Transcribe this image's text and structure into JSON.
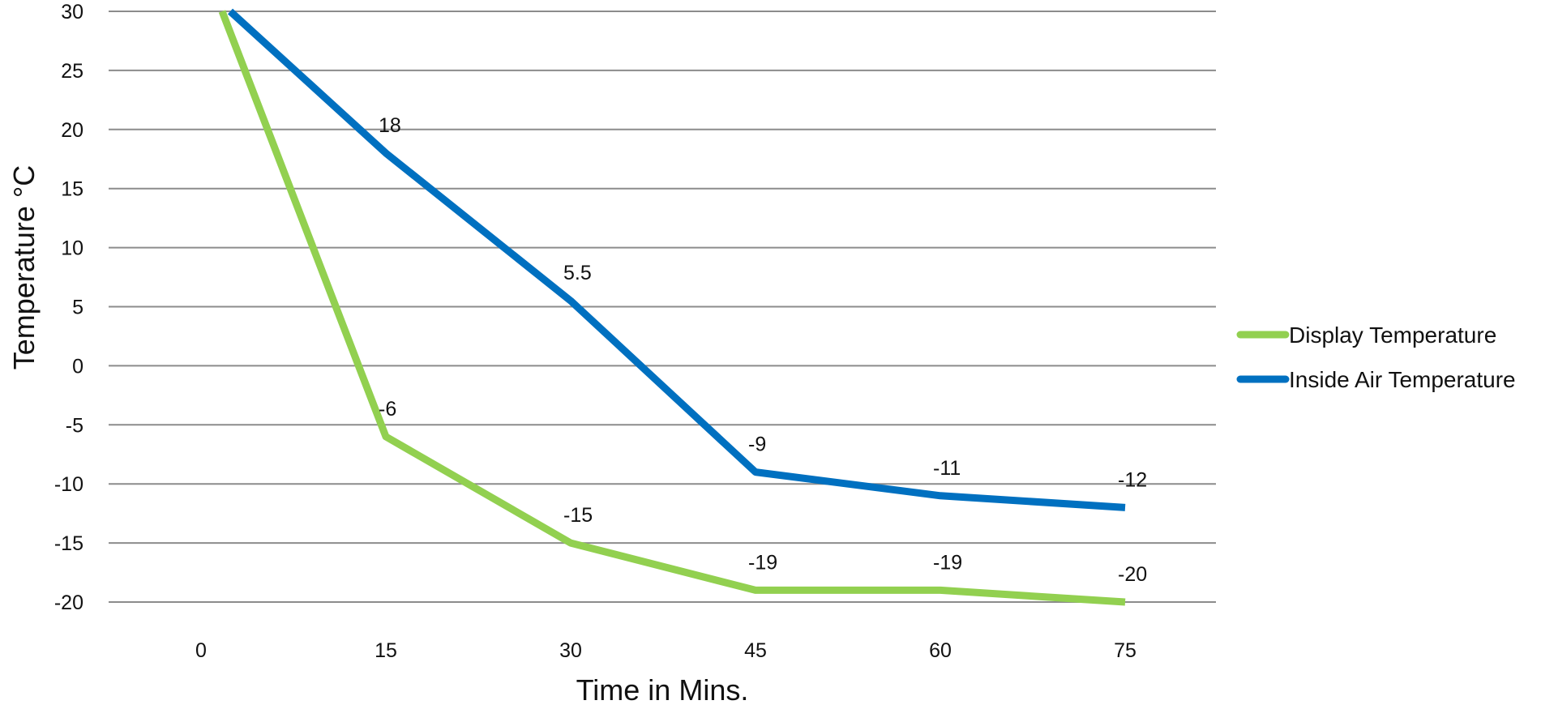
{
  "chart_data": {
    "type": "line",
    "title": "",
    "xlabel": "Time in Mins.",
    "ylabel": "Temperature °C",
    "categories": [
      "0",
      "15",
      "30",
      "45",
      "60",
      "75"
    ],
    "ylim": [
      -20,
      30
    ],
    "yticks": [
      "30",
      "25",
      "20",
      "15",
      "10",
      "5",
      "0",
      "-5",
      "-10",
      "-15",
      "-20"
    ],
    "grid": "horizontal",
    "legend_position": "right",
    "series": [
      {
        "name": "Display Temperature",
        "color": "#92d050",
        "values": [
          30,
          -6,
          -15,
          -19,
          -19,
          -20
        ],
        "labels": [
          "",
          "-6",
          "-15",
          "-19",
          "-19",
          "-20"
        ]
      },
      {
        "name": "Inside Air Temperature",
        "color": "#0070c0",
        "values": [
          30,
          18,
          5.5,
          -9,
          -11,
          -12
        ],
        "labels": [
          "",
          "18",
          "5.5",
          "-9",
          "-11",
          "-12"
        ]
      }
    ]
  }
}
